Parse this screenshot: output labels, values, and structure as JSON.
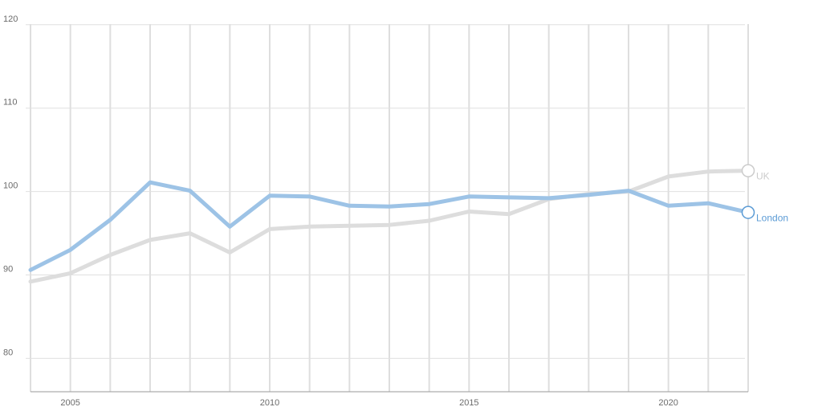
{
  "chart_data": {
    "type": "line",
    "title": "",
    "xlabel": "",
    "ylabel": "",
    "x": [
      2004,
      2005,
      2006,
      2007,
      2008,
      2009,
      2010,
      2011,
      2012,
      2013,
      2014,
      2015,
      2016,
      2017,
      2018,
      2019,
      2020,
      2021,
      2022
    ],
    "xlim": [
      2004,
      2022
    ],
    "ylim": [
      76,
      122
    ],
    "x_ticks": [
      2005,
      2010,
      2015,
      2020
    ],
    "y_ticks": [
      80,
      90,
      100,
      110,
      120
    ],
    "vertical_grid": "yearly",
    "horizontal_grid": true,
    "legend": "end-of-line labels",
    "series": [
      {
        "name": "UK",
        "color": "#dddddd",
        "label_color": "#cccccc",
        "values": [
          89.2,
          90.2,
          92.4,
          94.2,
          95.0,
          92.7,
          95.5,
          95.8,
          95.9,
          96.0,
          96.5,
          97.6,
          97.3,
          99.1,
          99.7,
          100.0,
          101.8,
          102.4,
          102.5
        ]
      },
      {
        "name": "London",
        "color": "#9dc3e6",
        "label_color": "#5b9bd5",
        "values": [
          90.6,
          93.0,
          96.6,
          101.1,
          100.1,
          95.8,
          99.5,
          99.4,
          98.3,
          98.2,
          98.5,
          99.4,
          99.3,
          99.2,
          99.6,
          100.1,
          98.3,
          98.6,
          97.5
        ]
      }
    ]
  }
}
